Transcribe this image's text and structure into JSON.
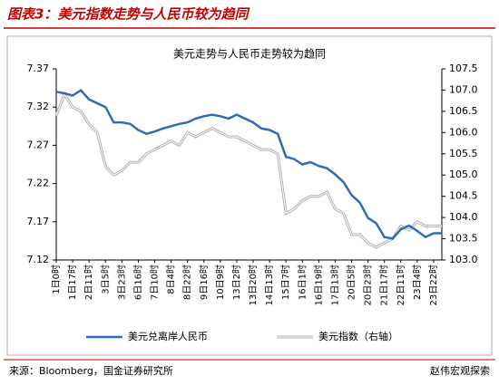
{
  "header": "图表3：美元指数走势与人民币较为趋同",
  "source": "来源：Bloomberg，国金证券研究所",
  "watermark": "赵伟宏观探索",
  "chart_data": {
    "type": "line",
    "title": "美元走势与人民币走势较为趋同",
    "categories": [
      "1日0时",
      null,
      "1日17时",
      null,
      "2日11时",
      null,
      "3日5时",
      null,
      "3日23时",
      null,
      "6日16时",
      null,
      "7日10时",
      null,
      "8日4时",
      null,
      "8日22时",
      null,
      "9日16时",
      null,
      "10日9时",
      null,
      "13日2时",
      null,
      "13日20时",
      null,
      "14日13时",
      null,
      "15日7时",
      null,
      "16日1时",
      null,
      "16日19时",
      null,
      "17日13时",
      null,
      "20日5时",
      null,
      "20日23时",
      null,
      "21日17时",
      null,
      "22日11时",
      null,
      "23日4时",
      null,
      "23日22时",
      null
    ],
    "series": [
      {
        "name": "美元兑离岸人民币",
        "color": "#2e6db4",
        "values": [
          7.34,
          7.338,
          7.335,
          7.342,
          7.33,
          7.325,
          7.32,
          7.3,
          7.3,
          7.298,
          7.29,
          7.285,
          7.288,
          7.292,
          7.295,
          7.298,
          7.3,
          7.305,
          7.308,
          7.31,
          7.308,
          7.305,
          7.31,
          7.305,
          7.3,
          7.292,
          7.29,
          7.285,
          7.255,
          7.252,
          7.245,
          7.248,
          7.243,
          7.24,
          7.232,
          7.222,
          7.205,
          7.195,
          7.175,
          7.168,
          7.15,
          7.148,
          7.16,
          7.165,
          7.158,
          7.15,
          7.155,
          7.155
        ]
      },
      {
        "name": "美元指数（右轴）",
        "color": "#b0b0b0",
        "axis": "y2",
        "values": [
          106.4,
          106.9,
          106.6,
          106.5,
          106.2,
          106.0,
          105.2,
          105.0,
          105.1,
          105.3,
          105.3,
          105.5,
          105.6,
          105.7,
          105.8,
          105.7,
          106.0,
          105.9,
          106.0,
          106.1,
          106.0,
          105.9,
          105.9,
          105.8,
          105.7,
          105.6,
          105.6,
          105.5,
          104.1,
          104.2,
          104.4,
          104.5,
          104.5,
          104.6,
          104.2,
          104.1,
          103.6,
          103.6,
          103.4,
          103.3,
          103.4,
          103.5,
          103.8,
          103.7,
          103.9,
          103.8,
          103.8,
          103.8
        ]
      }
    ],
    "ylim": [
      7.12,
      7.37
    ],
    "yticks": [
      7.12,
      7.17,
      7.22,
      7.27,
      7.32,
      7.37
    ],
    "y2lim": [
      103,
      107.5
    ],
    "y2ticks": [
      {
        "value": 103,
        "label": "103.0"
      },
      {
        "value": 103.5,
        "label": "103.5"
      },
      {
        "value": 104,
        "label": "104.0"
      },
      {
        "value": 104.5,
        "label": "104.5"
      },
      {
        "value": 105,
        "label": "105.0"
      },
      {
        "value": 105.5,
        "label": "105.5"
      },
      {
        "value": 106,
        "label": "106.0"
      },
      {
        "value": 106.5,
        "label": "106.5"
      },
      {
        "value": 107,
        "label": "107.0"
      },
      {
        "value": 107.5,
        "label": "107.5"
      }
    ],
    "grid": false,
    "legend": "bottom"
  }
}
